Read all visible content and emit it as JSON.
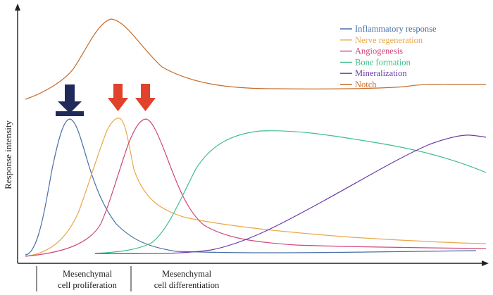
{
  "axes": {
    "ylabel": "Response intensity"
  },
  "legend": [
    {
      "key": "inflammatory",
      "label": "Inflammatory response",
      "color": "#4a6fa5"
    },
    {
      "key": "nerve",
      "label": "Nerve regeneration",
      "color": "#e8a84a"
    },
    {
      "key": "angio",
      "label": "Angiogenesis",
      "color": "#d0477a"
    },
    {
      "key": "bone",
      "label": "Bone formation",
      "color": "#3fbf8a"
    },
    {
      "key": "mineral",
      "label": "Mineralization",
      "color": "#6a3aa8"
    },
    {
      "key": "notch",
      "label": "Notch",
      "color": "#c56b2a"
    }
  ],
  "phases": [
    {
      "key": "proliferation",
      "line1": "Mesenchymal",
      "line2": "cell proliferation"
    },
    {
      "key": "differentiation",
      "line1": "Mesenchymal",
      "line2": "cell differentiation"
    }
  ],
  "markers": [
    {
      "key": "inhibit",
      "icon": "inhibition-arrow-icon",
      "color": "#1f2a5a"
    },
    {
      "key": "promote-1",
      "icon": "red-down-arrow-icon",
      "color": "#e0422c"
    },
    {
      "key": "promote-2",
      "icon": "red-down-arrow-icon",
      "color": "#e0422c"
    }
  ]
}
